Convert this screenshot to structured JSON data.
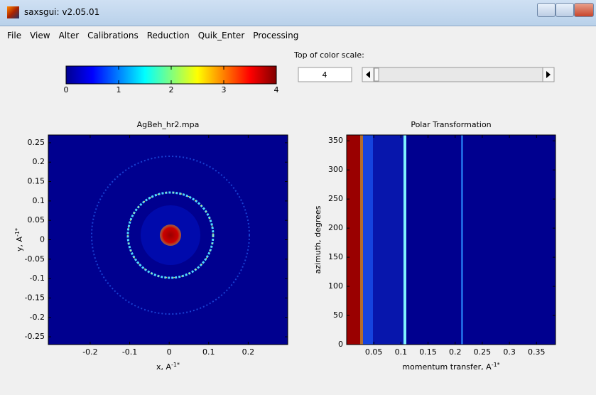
{
  "window": {
    "title": "saxsgui: v2.05.01"
  },
  "menu": [
    "File",
    "View",
    "Alter",
    "Calibrations",
    "Reduction",
    "Quik_Enter",
    "Processing"
  ],
  "color_scale": {
    "label": "Top of color scale:",
    "value": 4,
    "lim": [
      0,
      4
    ],
    "ticks": [
      0,
      1,
      2,
      3,
      4
    ]
  },
  "charts": [
    {
      "type": "heatmap",
      "title": "AgBeh_hr2.mpa",
      "xlabel": {
        "text": "x, A",
        "sup": "-1*"
      },
      "ylabel": {
        "text": "y, A",
        "sup": "-1*"
      },
      "xlim": [
        -0.306,
        0.3
      ],
      "ylim": [
        -0.27,
        0.27
      ],
      "xticks": [
        -0.2,
        -0.1,
        0,
        0.1,
        0.2
      ],
      "yticks": [
        -0.25,
        -0.2,
        -0.15,
        -0.1,
        -0.05,
        0,
        0.05,
        0.1,
        0.15,
        0.2,
        0.25
      ]
    },
    {
      "type": "heatmap",
      "title": "Polar Transformation",
      "xlabel": {
        "text": "momentum transfer, A",
        "sup": "-1*"
      },
      "ylabel": {
        "text": "azimuth, degrees"
      },
      "xlim": [
        0,
        0.385
      ],
      "ylim": [
        0,
        360
      ],
      "xticks": [
        0.05,
        0.1,
        0.15,
        0.2,
        0.25,
        0.3,
        0.35
      ],
      "yticks": [
        0,
        50,
        100,
        150,
        200,
        250,
        300,
        350
      ]
    }
  ]
}
